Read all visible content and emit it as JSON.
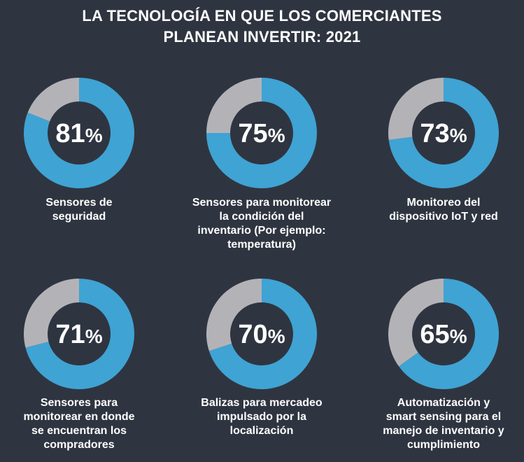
{
  "title_lines": [
    "LA TECNOLOGÍA EN QUE LOS COMERCIANTES",
    "PLANEAN INVERTIR: 2021"
  ],
  "colors": {
    "background": "#2f3540",
    "fill": "#3fa3d4",
    "remainder": "#b3b3b7",
    "text": "#ffffff"
  },
  "chart_data": [
    {
      "type": "pie",
      "value": 81,
      "unit": "%",
      "value_label": "81%",
      "label_lines": [
        "Sensores de",
        "seguridad"
      ]
    },
    {
      "type": "pie",
      "value": 75,
      "unit": "%",
      "value_label": "75%",
      "label_lines": [
        "Sensores para monitorear",
        "la condición del",
        "inventario (Por ejemplo:",
        "temperatura)"
      ]
    },
    {
      "type": "pie",
      "value": 73,
      "unit": "%",
      "value_label": "73%",
      "label_lines": [
        "Monitoreo del",
        "dispositivo IoT y red"
      ]
    },
    {
      "type": "pie",
      "value": 71,
      "unit": "%",
      "value_label": "71%",
      "label_lines": [
        "Sensores para",
        "monitorear en donde",
        "se encuentran los",
        "compradores"
      ]
    },
    {
      "type": "pie",
      "value": 70,
      "unit": "%",
      "value_label": "70%",
      "label_lines": [
        "Balizas para mercadeo",
        "impulsado por la",
        "localización"
      ]
    },
    {
      "type": "pie",
      "value": 65,
      "unit": "%",
      "value_label": "65%",
      "label_lines": [
        "Automatización y",
        "smart sensing para el",
        "manejo de inventario y",
        "cumplimiento"
      ]
    }
  ]
}
